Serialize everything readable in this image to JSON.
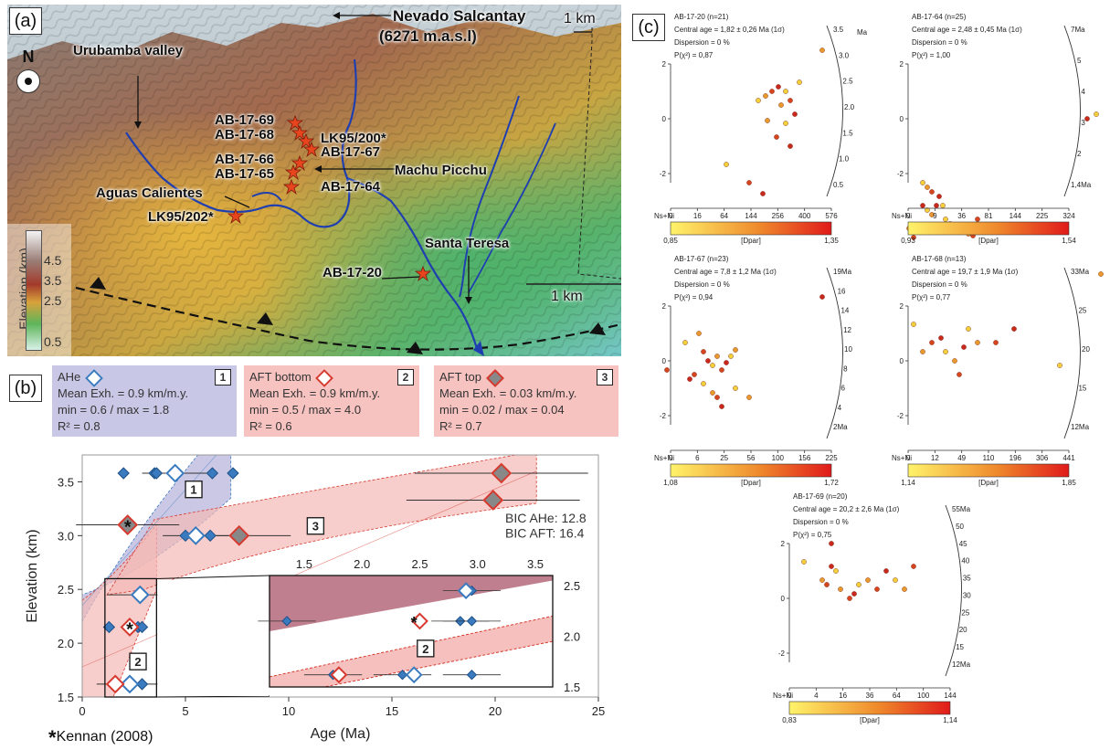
{
  "panels": {
    "a": "(a)",
    "b": "(b)",
    "c": "(c)"
  },
  "map": {
    "north": "N",
    "peak_name": "Nevado Salcantay",
    "peak_elev": "(6271 m.a.s.l)",
    "valley": "Urubamba valley",
    "machu_picchu": "Machu Picchu",
    "aguas_calientes": "Aguas Calientes",
    "santa_teresa": "Santa Teresa",
    "scale_top": "1 km",
    "scale_bottom": "1 km",
    "elevation_title": "Elevation (km)",
    "elevation_ticks": [
      "4.5",
      "3.5",
      "2.5",
      "0.5"
    ],
    "samples": [
      "AB-17-69",
      "AB-17-68",
      "LK95/200*",
      "AB-17-67",
      "AB-17-66",
      "AB-17-65",
      "AB-17-64",
      "LK95/202*",
      "AB-17-20"
    ]
  },
  "legend": {
    "ahe": {
      "title": "AHe",
      "num": "1",
      "line1": "Mean Exh. = 0.9 km/m.y.",
      "line2": "min = 0.6 / max = 1.8",
      "line3": "R² = 0.8"
    },
    "aft_bottom": {
      "title": "AFT bottom",
      "num": "2",
      "line1": "Mean Exh. = 0.9 km/m.y.",
      "line2": "min = 0.5 / max = 4.0",
      "line3": "R² = 0.6"
    },
    "aft_top": {
      "title": "AFT top",
      "num": "3",
      "line1": "Mean Exh. = 0.03 km/m.y.",
      "line2": "min = 0.02 / max = 0.04",
      "line3": "R² = 0.7"
    }
  },
  "chart_data": [
    {
      "type": "scatter",
      "xlabel": "Age (Ma)",
      "ylabel": "Elevation (km)",
      "xlim": [
        0,
        25
      ],
      "ylim": [
        1.5,
        3.75
      ],
      "xticks": [
        "0",
        "5",
        "10",
        "15",
        "20",
        "25"
      ],
      "yticks": [
        "1.5",
        "2.0",
        "2.5",
        "3.0",
        "3.5"
      ],
      "annotations": [
        "BIC AHe: 12.8",
        "BIC AFT: 16.4"
      ],
      "footnote": "Kennan (2008)",
      "band_labels": [
        "1",
        "2",
        "3"
      ],
      "ahe_single_grains": [
        {
          "x": 2.0,
          "y": 3.58
        },
        {
          "x": 3.5,
          "y": 3.58
        },
        {
          "x": 3.6,
          "y": 3.58
        },
        {
          "x": 6.3,
          "y": 3.58
        },
        {
          "x": 7.3,
          "y": 3.58
        },
        {
          "x": 5.0,
          "y": 3.0
        },
        {
          "x": 5.6,
          "y": 3.0
        },
        {
          "x": 6.2,
          "y": 3.0
        },
        {
          "x": 2.8,
          "y": 2.45
        },
        {
          "x": 1.3,
          "y": 2.15
        },
        {
          "x": 2.7,
          "y": 2.15
        },
        {
          "x": 2.9,
          "y": 2.15
        },
        {
          "x": 2.4,
          "y": 1.62
        },
        {
          "x": 2.9,
          "y": 1.62
        }
      ],
      "ahe_mean": [
        {
          "x": 4.5,
          "y": 3.58
        },
        {
          "x": 5.5,
          "y": 3.0
        },
        {
          "x": 2.8,
          "y": 2.45
        },
        {
          "x": 2.3,
          "y": 1.62
        }
      ],
      "aft_bottom": [
        {
          "x": 2.3,
          "y": 2.15
        },
        {
          "x": 1.6,
          "y": 1.62
        }
      ],
      "aft_top": [
        {
          "x": 20.3,
          "y": 3.58
        },
        {
          "x": 19.9,
          "y": 3.33
        },
        {
          "x": 7.6,
          "y": 3.0
        },
        {
          "x": 2.2,
          "y": 3.1
        }
      ]
    },
    {
      "type": "scatter",
      "title": "inset",
      "xlim": [
        1.2,
        3.65
      ],
      "ylim": [
        1.5,
        2.6
      ],
      "xticks": [
        "1.5",
        "2.0",
        "2.5",
        "3.0",
        "3.5"
      ],
      "yticks": [
        "1.5",
        "2.0",
        "2.5"
      ],
      "band_label": "2",
      "ahe_single_grains": [
        {
          "x": 1.35,
          "y": 2.15
        },
        {
          "x": 2.85,
          "y": 2.15
        },
        {
          "x": 2.95,
          "y": 2.15
        },
        {
          "x": 1.75,
          "y": 1.62
        },
        {
          "x": 2.35,
          "y": 1.62
        },
        {
          "x": 2.95,
          "y": 1.62
        },
        {
          "x": 2.95,
          "y": 2.45
        }
      ],
      "ahe_mean": [
        {
          "x": 2.9,
          "y": 2.45
        },
        {
          "x": 2.45,
          "y": 1.62
        }
      ],
      "aft_bottom": [
        {
          "x": 2.5,
          "y": 2.15
        },
        {
          "x": 1.8,
          "y": 1.62
        }
      ]
    }
  ],
  "radial_plots": [
    {
      "id": "AB-17-20",
      "title": "AB-17-20 (n=21)",
      "age": "Central age = 1,82 ± 0,26 Ma (1σ)",
      "disp": "Dispersion = 0 %",
      "p": "P(χ²) = 0,87",
      "arc_labels": [
        "3.5",
        "3.0",
        "2.5",
        "2.0",
        "1.5",
        "1.0",
        "0.5"
      ],
      "arc_unit": "Ma",
      "x_ticks": [
        "0",
        "16",
        "64",
        "144",
        "256",
        "400",
        "576"
      ],
      "x_label": "Ns+Ni",
      "bar_min": "0,85",
      "bar_max": "1,35",
      "bar_label": "[Dpar]"
    },
    {
      "id": "AB-17-64",
      "title": "AB-17-64 (n=25)",
      "age": "Central age = 2,48 ± 0,45 Ma (1σ)",
      "disp": "Dispersion = 0 %",
      "p": "P(χ²) = 1,00",
      "arc_labels": [
        "7Ma",
        "5",
        "4",
        "3",
        "2",
        "1,4Ma"
      ],
      "x_ticks": [
        "0",
        "9",
        "36",
        "81",
        "144",
        "225",
        "324"
      ],
      "x_label": "Ns+Ni",
      "bar_min": "0,93",
      "bar_max": "1,54",
      "bar_label": "[Dpar]"
    },
    {
      "id": "AB-17-67",
      "title": "AB-17-67 (n=23)",
      "age": "Central age = 7,8 ± 1,2 Ma (1σ)",
      "disp": "Dispersion = 0 %",
      "p": "P(χ²) = 0,94",
      "arc_labels": [
        "19Ma",
        "16",
        "14",
        "12",
        "10",
        "8",
        "6",
        "4",
        "2Ma"
      ],
      "x_ticks": [
        "0",
        "6",
        "25",
        "56",
        "100",
        "156",
        "225"
      ],
      "x_label": "Ns+Ni",
      "bar_min": "1,08",
      "bar_max": "1,72",
      "bar_label": "[Dpar]"
    },
    {
      "id": "AB-17-68",
      "title": "AB-17-68 (n=13)",
      "age": "Central age = 19,7 ± 1,9 Ma (1σ)",
      "disp": "Dispersion = 0 %",
      "p": "P(χ²) = 0,77",
      "arc_labels": [
        "33Ma",
        "25",
        "20",
        "15",
        "12Ma"
      ],
      "x_ticks": [
        "0",
        "12",
        "49",
        "110",
        "196",
        "306",
        "441"
      ],
      "x_label": "Ns+Ni",
      "bar_min": "1,14",
      "bar_max": "1,85",
      "bar_label": "[Dpar]"
    },
    {
      "id": "AB-17-69",
      "title": "AB-17-69 (n=20)",
      "age": "Central age = 20,2 ± 2,6 Ma (1σ)",
      "disp": "Dispersion = 0 %",
      "p": "P(χ²) = 0,75",
      "arc_labels": [
        "55Ma",
        "50",
        "45",
        "40",
        "35",
        "30",
        "25",
        "20",
        "15",
        "12Ma"
      ],
      "x_ticks": [
        "0",
        "4",
        "16",
        "36",
        "64",
        "100",
        "144"
      ],
      "x_label": "Ns+Ni",
      "bar_min": "0,83",
      "bar_max": "1,14",
      "bar_label": "[Dpar]"
    }
  ],
  "colors": {
    "ahe": "#3a7bbf",
    "aft": "#d63a2f",
    "aft_top": "#888888",
    "band_blue": "#b9b6de",
    "band_red": "#f4b9b6"
  }
}
